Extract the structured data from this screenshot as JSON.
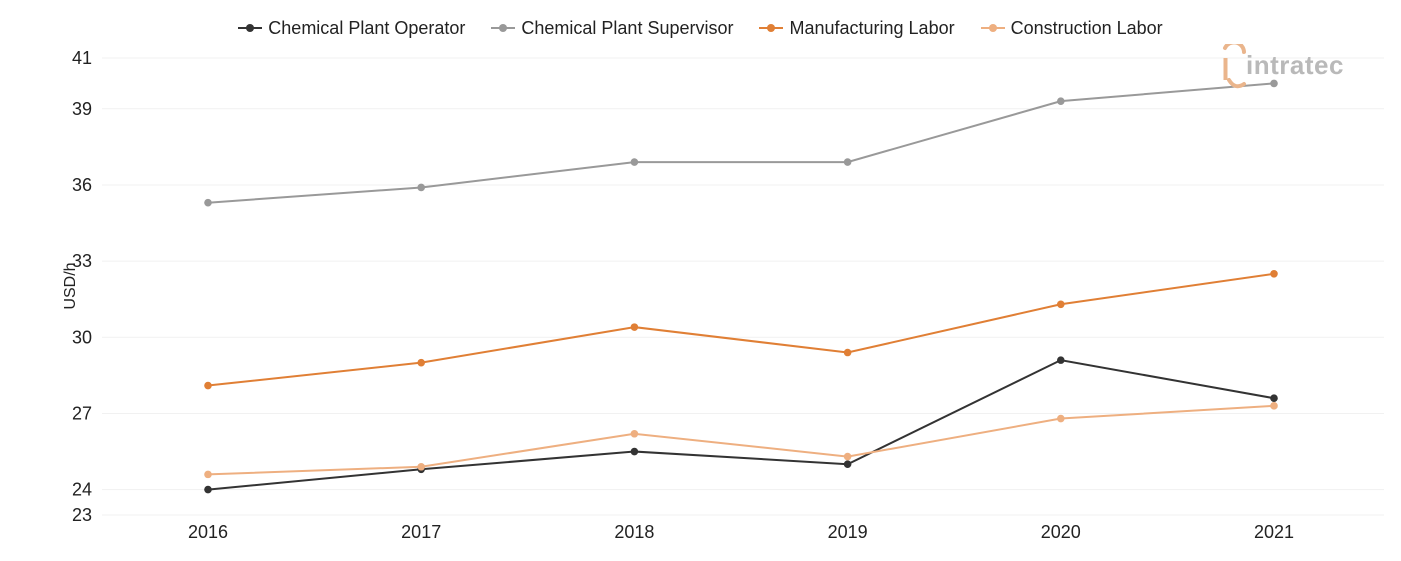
{
  "chart_data": {
    "type": "line",
    "title": "",
    "xlabel": "",
    "ylabel": "USD/h",
    "x": [
      "2016",
      "2017",
      "2018",
      "2019",
      "2020",
      "2021"
    ],
    "yticks": [
      23,
      24,
      27,
      30,
      33,
      36,
      39,
      41
    ],
    "ylim": [
      23,
      41
    ],
    "grid": true,
    "legend": "top-center",
    "series": [
      {
        "name": "Chemical Plant Operator",
        "color": "#333333",
        "values": [
          24.0,
          24.8,
          25.5,
          25.0,
          29.1,
          27.6
        ]
      },
      {
        "name": "Chemical Plant Supervisor",
        "color": "#999999",
        "values": [
          35.3,
          35.9,
          36.9,
          36.9,
          39.3,
          40.0
        ]
      },
      {
        "name": "Manufacturing Labor",
        "color": "#e07f35",
        "values": [
          28.1,
          29.0,
          30.4,
          29.4,
          31.3,
          32.5
        ]
      },
      {
        "name": "Construction Labor",
        "color": "#eeaf80",
        "values": [
          24.6,
          24.9,
          26.2,
          25.3,
          26.8,
          27.3
        ]
      }
    ]
  },
  "watermark": {
    "text": "intratec",
    "color": "#b9b9b9",
    "accent": "#eab58c"
  }
}
